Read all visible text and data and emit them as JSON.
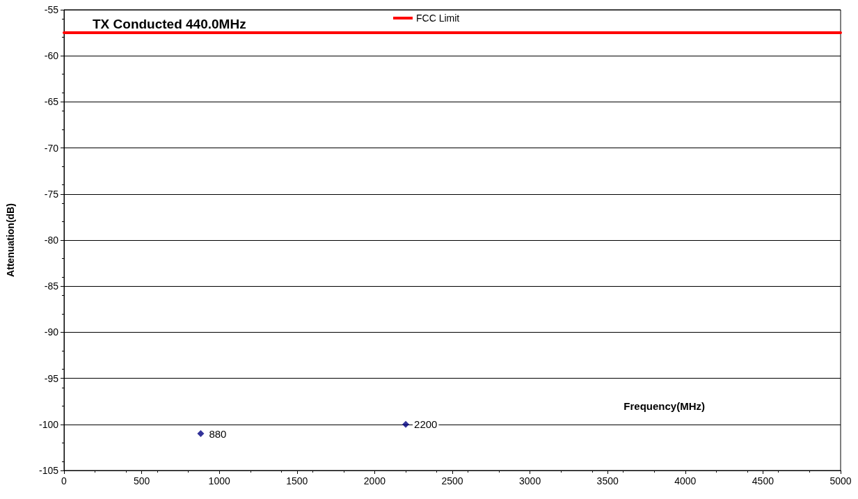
{
  "chart_data": {
    "type": "scatter",
    "title": "TX Conducted 440.0MHz",
    "xlabel": "Frequency(MHz)",
    "ylabel": "Attenuation(dB)",
    "xlim": [
      0,
      5000
    ],
    "xticks": [
      0,
      500,
      1000,
      1500,
      2000,
      2500,
      3000,
      3500,
      4000,
      4500,
      5000
    ],
    "ylim": [
      -105,
      -55
    ],
    "yticks": [
      -105,
      -100,
      -95,
      -90,
      -85,
      -80,
      -75,
      -70,
      -65,
      -60,
      -55
    ],
    "grid": "y",
    "legend": "top",
    "annotations": [
      {
        "text": "880",
        "x": 880,
        "y": -101
      },
      {
        "text": "2200",
        "x": 2200,
        "y": -100
      }
    ],
    "series": [
      {
        "color": "#000080",
        "marker": "diamond",
        "x": [
          880,
          2200
        ],
        "values": [
          -101,
          -100
        ]
      },
      {
        "type": "line",
        "name": "FCC Limit",
        "color": "#ff0000",
        "marker": "none",
        "line_style": "solid",
        "x": [
          0,
          5000
        ],
        "values": [
          -57.5,
          -57.5
        ]
      }
    ]
  }
}
